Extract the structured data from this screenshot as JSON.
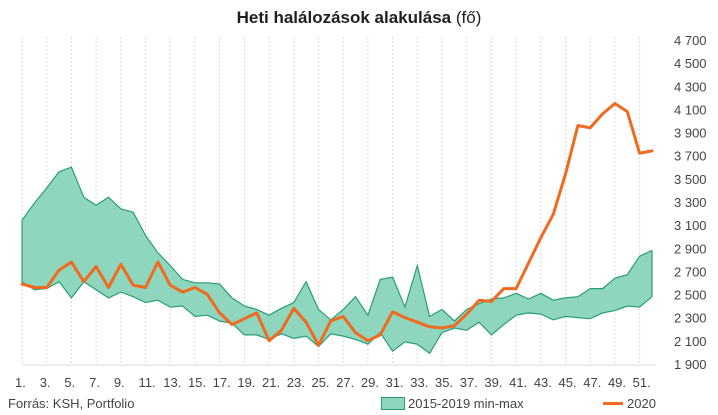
{
  "title": {
    "bold": "Heti halálozások alakulása",
    "unit": "(fő)"
  },
  "source": "Forrás: KSH, Portfolio",
  "colors": {
    "band_fill": "#8fd6be",
    "band_stroke": "#2a9d78",
    "line": "#f06a1f",
    "grid": "#d9d9d9",
    "text": "#444444"
  },
  "chart_data": {
    "type": "line",
    "title": "Heti halálozások alakulása (fő)",
    "x": [
      1,
      2,
      3,
      4,
      5,
      6,
      7,
      8,
      9,
      10,
      11,
      12,
      13,
      14,
      15,
      16,
      17,
      18,
      19,
      20,
      21,
      22,
      23,
      24,
      25,
      26,
      27,
      28,
      29,
      30,
      31,
      32,
      33,
      34,
      35,
      36,
      37,
      38,
      39,
      40,
      41,
      42,
      43,
      44,
      45,
      46,
      47,
      48,
      49,
      50,
      51,
      52
    ],
    "xticks": [
      "1.",
      "3.",
      "5.",
      "7.",
      "9.",
      "11.",
      "13.",
      "15.",
      "17.",
      "19.",
      "21.",
      "23.",
      "25.",
      "27.",
      "29.",
      "31.",
      "33.",
      "35.",
      "37.",
      "39.",
      "41.",
      "43.",
      "45.",
      "47.",
      "49.",
      "51."
    ],
    "ylim": [
      1900,
      4700
    ],
    "yticks": [
      "1 900",
      "2 100",
      "2 300",
      "2 500",
      "2 700",
      "2 900",
      "3 100",
      "3 300",
      "3 500",
      "3 700",
      "3 900",
      "4 100",
      "4 300",
      "4 500",
      "4 700"
    ],
    "y_axis_position": "right",
    "series": [
      {
        "name": "2015-2019 min-max",
        "kind": "band",
        "min": [
          2620,
          2550,
          2560,
          2620,
          2480,
          2620,
          2550,
          2480,
          2530,
          2490,
          2440,
          2460,
          2400,
          2410,
          2320,
          2330,
          2280,
          2260,
          2160,
          2160,
          2120,
          2170,
          2130,
          2150,
          2060,
          2170,
          2150,
          2120,
          2080,
          2180,
          2020,
          2100,
          2080,
          2000,
          2180,
          2220,
          2200,
          2270,
          2160,
          2250,
          2330,
          2350,
          2340,
          2290,
          2320,
          2310,
          2300,
          2350,
          2370,
          2410,
          2400,
          2490
        ],
        "max": [
          3150,
          3300,
          3430,
          3570,
          3610,
          3350,
          3280,
          3350,
          3250,
          3220,
          3020,
          2870,
          2760,
          2640,
          2610,
          2610,
          2600,
          2480,
          2410,
          2380,
          2330,
          2390,
          2440,
          2620,
          2380,
          2290,
          2380,
          2490,
          2330,
          2640,
          2660,
          2400,
          2760,
          2320,
          2380,
          2280,
          2380,
          2430,
          2470,
          2480,
          2520,
          2470,
          2520,
          2460,
          2480,
          2490,
          2560,
          2560,
          2650,
          2680,
          2840,
          2890
        ]
      },
      {
        "name": "2020",
        "kind": "line",
        "values": [
          2600,
          2570,
          2570,
          2720,
          2790,
          2620,
          2750,
          2570,
          2770,
          2590,
          2570,
          2790,
          2590,
          2530,
          2570,
          2510,
          2350,
          2250,
          2300,
          2350,
          2110,
          2200,
          2390,
          2270,
          2070,
          2280,
          2320,
          2180,
          2110,
          2160,
          2360,
          2310,
          2270,
          2230,
          2220,
          2240,
          2340,
          2460,
          2450,
          2560,
          2560,
          2780,
          3000,
          3200,
          3550,
          3970,
          3950,
          4070,
          4160,
          4090,
          3730,
          3750
        ]
      }
    ]
  }
}
